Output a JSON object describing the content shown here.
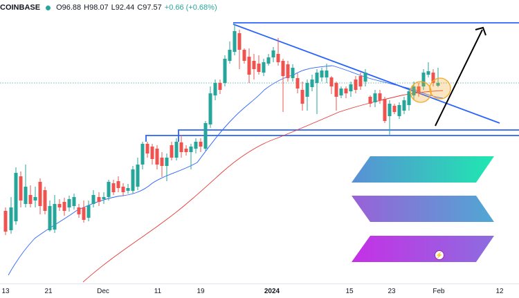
{
  "header": {
    "exchange": "COINBASE",
    "open": "O96.88",
    "high": "H98.07",
    "low": "L92.44",
    "close": "C97.57",
    "change": "+0.66 (+0.68%)"
  },
  "time_axis": {
    "ticks": [
      {
        "label": "13",
        "bold": false
      },
      {
        "label": "21",
        "bold": false
      },
      {
        "label": "Dec",
        "bold": false
      },
      {
        "label": "11",
        "bold": false
      },
      {
        "label": "19",
        "bold": false
      },
      {
        "label": "2024",
        "bold": true
      },
      {
        "label": "15",
        "bold": false
      },
      {
        "label": "23",
        "bold": false
      },
      {
        "label": "Feb",
        "bold": false
      },
      {
        "label": "12",
        "bold": false
      }
    ]
  },
  "colors": {
    "up": "#26a69a",
    "down": "#ef5350",
    "ma_fast": "#2962ff",
    "ma_slow": "#e53935",
    "trendline": "#2962ff",
    "arrow": "#000000",
    "highlight": "#f5a623"
  },
  "icons": {
    "status": "live-status-dot-icon",
    "event": "lightning-event-icon",
    "logo": "solana-logo-icon"
  },
  "event_icon_glyph": "⚡"
}
